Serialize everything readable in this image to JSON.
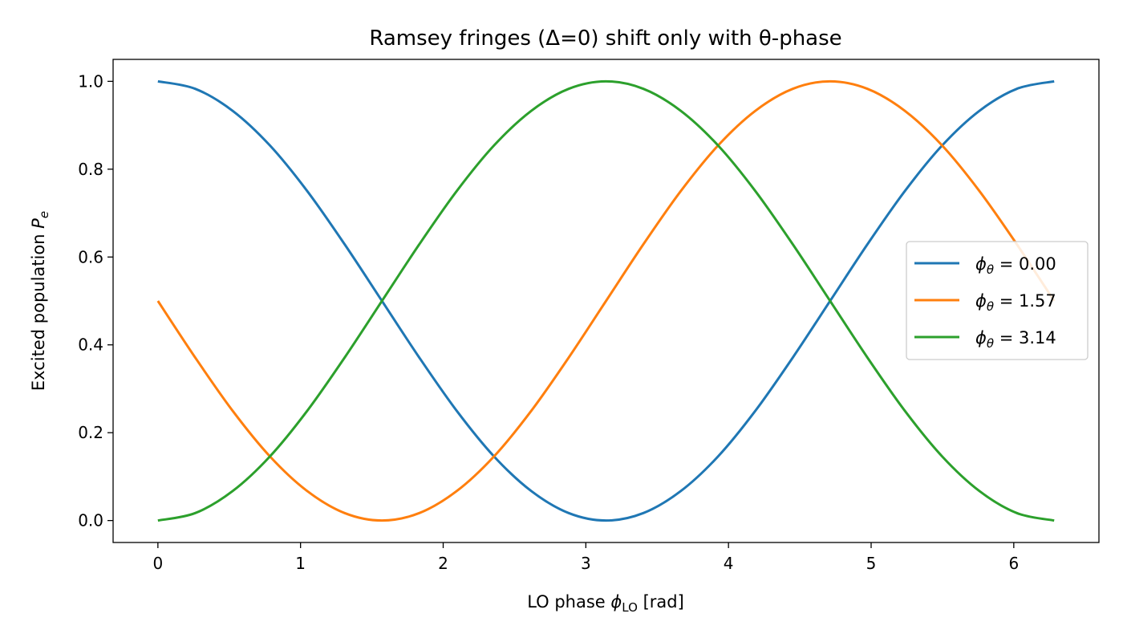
{
  "chart_data": {
    "type": "line",
    "title": "Ramsey fringes (Δ=0) shift only with θ-phase",
    "xlabel": {
      "main": "LO phase ",
      "sym": "ϕ",
      "sub": "LO",
      "tail": " [rad]"
    },
    "ylabel": {
      "main": "Excited population ",
      "sym": "P",
      "sub": "e"
    },
    "xlim": [
      -0.314,
      6.597
    ],
    "ylim": [
      -0.05,
      1.05
    ],
    "xticks": [
      0,
      1,
      2,
      3,
      4,
      5,
      6
    ],
    "yticks": [
      0.0,
      0.2,
      0.4,
      0.6,
      0.8,
      1.0
    ],
    "xtick_labels": [
      "0",
      "1",
      "2",
      "3",
      "4",
      "5",
      "6"
    ],
    "ytick_labels": [
      "0.0",
      "0.2",
      "0.4",
      "0.6",
      "0.8",
      "1.0"
    ],
    "grid": false,
    "legend_position": "center-right",
    "x": [
      0.0,
      0.2618,
      0.5236,
      0.7854,
      1.0472,
      1.309,
      1.5708,
      1.8326,
      2.0944,
      2.3562,
      2.618,
      2.8798,
      3.1416,
      3.4034,
      3.6652,
      3.927,
      4.1888,
      4.4506,
      4.7124,
      4.9742,
      5.236,
      5.4978,
      5.7596,
      6.0214,
      6.2832
    ],
    "series": [
      {
        "name": {
          "sym": "ϕ",
          "sub": "θ",
          "value": " = 0.00"
        },
        "color": "#1f77b4",
        "values": [
          1.0,
          0.983,
          0.933,
          0.854,
          0.75,
          0.629,
          0.5,
          0.371,
          0.25,
          0.146,
          0.067,
          0.017,
          0.0,
          0.017,
          0.067,
          0.146,
          0.25,
          0.371,
          0.5,
          0.629,
          0.75,
          0.854,
          0.933,
          0.983,
          1.0
        ]
      },
      {
        "name": {
          "sym": "ϕ",
          "sub": "θ",
          "value": " = 1.57"
        },
        "color": "#ff7f0e",
        "values": [
          0.5,
          0.371,
          0.25,
          0.146,
          0.067,
          0.017,
          0.0,
          0.017,
          0.067,
          0.146,
          0.25,
          0.371,
          0.5,
          0.629,
          0.75,
          0.854,
          0.933,
          0.983,
          1.0,
          0.983,
          0.933,
          0.854,
          0.75,
          0.629,
          0.5
        ]
      },
      {
        "name": {
          "sym": "ϕ",
          "sub": "θ",
          "value": " = 3.14"
        },
        "color": "#2ca02c",
        "values": [
          0.0,
          0.017,
          0.067,
          0.146,
          0.25,
          0.371,
          0.5,
          0.629,
          0.75,
          0.854,
          0.933,
          0.983,
          1.0,
          0.983,
          0.933,
          0.854,
          0.75,
          0.629,
          0.5,
          0.371,
          0.25,
          0.146,
          0.067,
          0.017,
          0.0
        ]
      }
    ]
  }
}
